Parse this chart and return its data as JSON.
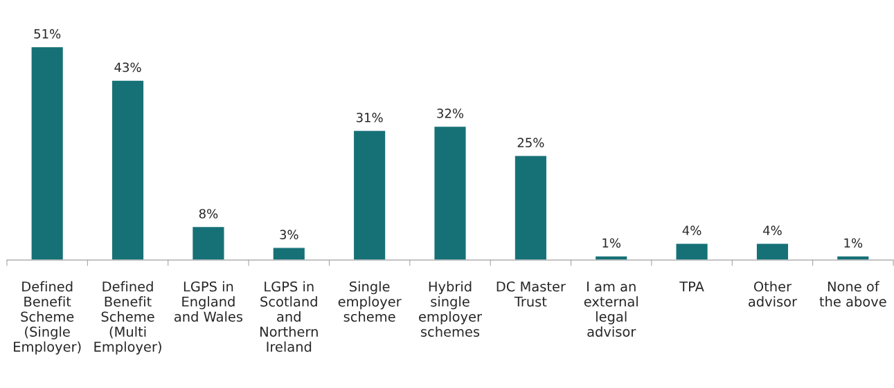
{
  "chart_data": {
    "type": "bar",
    "categories": [
      "Defined Benefit Scheme (Single Employer)",
      "Defined Benefit Scheme (Multi Employer)",
      "LGPS in England and Wales",
      "LGPS in Scotland and Northern Ireland",
      "Single employer scheme",
      "Hybrid single employer schemes",
      "DC Master Trust",
      "I am an external legal advisor",
      "TPA",
      "Other advisor",
      "None of the above"
    ],
    "values": [
      51,
      43,
      8,
      3,
      31,
      32,
      25,
      1,
      4,
      4,
      1
    ],
    "value_labels": [
      "51%",
      "43%",
      "8%",
      "3%",
      "31%",
      "32%",
      "25%",
      "1%",
      "4%",
      "4%",
      "1%"
    ],
    "color": "#167177",
    "grid": false
  }
}
